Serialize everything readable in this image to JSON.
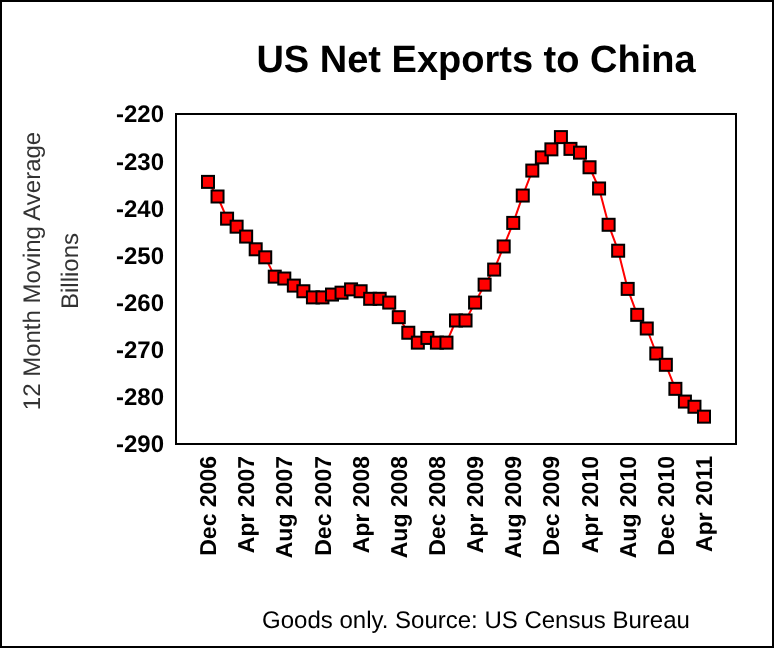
{
  "chart_data": {
    "type": "line",
    "title": "US Net Exports to China",
    "ylabel": "12 Month Moving Average\nBillions",
    "categories": [
      "Dec 2006",
      null,
      null,
      null,
      "Apr 2007",
      null,
      null,
      null,
      "Aug 2007",
      null,
      null,
      null,
      "Dec 2007",
      null,
      null,
      null,
      "Apr 2008",
      null,
      null,
      null,
      "Aug 2008",
      null,
      null,
      null,
      "Dec 2008",
      null,
      null,
      null,
      "Apr 2009",
      null,
      null,
      null,
      "Aug 2009",
      null,
      null,
      null,
      "Dec 2009",
      null,
      null,
      null,
      "Apr 2010",
      null,
      null,
      null,
      "Aug 2010",
      null,
      null,
      null,
      "Dec 2010",
      null,
      null,
      null,
      "Apr 2011"
    ],
    "series": [
      {
        "color": "#ff0000",
        "values": [
          -234.4,
          -237.5,
          -242.2,
          -243.9,
          -246.0,
          -248.7,
          -250.4,
          -254.5,
          -254.9,
          -256.4,
          -257.6,
          -258.9,
          -258.9,
          -258.3,
          -257.9,
          -257.2,
          -257.6,
          -259.2,
          -259.2,
          -260.0,
          -263.1,
          -266.4,
          -268.5,
          -267.5,
          -268.5,
          -268.5,
          -263.8,
          -263.8,
          -260.0,
          -256.2,
          -253.0,
          -248.1,
          -243.1,
          -237.3,
          -232.0,
          -229.2,
          -227.5,
          -224.9,
          -227.4,
          -228.2,
          -231.3,
          -235.8,
          -243.5,
          -249.0,
          -257.1,
          -262.6,
          -265.5,
          -270.8,
          -273.2,
          -278.3,
          -281.0,
          -282.1,
          -284.2
        ]
      }
    ],
    "ylim": [
      -290,
      -220
    ],
    "yticks": [
      -290,
      -280,
      -270,
      -260,
      -250,
      -240,
      -230,
      -220
    ],
    "marker": "square",
    "line_style": "solid",
    "grid": false,
    "annotations": [
      "Goods only. Source: US Census Bureau"
    ]
  }
}
